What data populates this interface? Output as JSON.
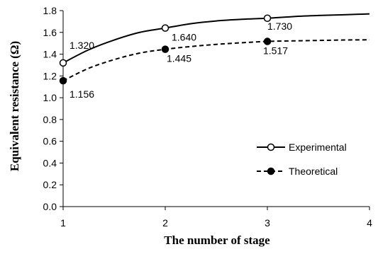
{
  "chart_data": {
    "type": "line",
    "title": "",
    "xlabel": "The number of stage",
    "ylabel": "Equivalent  resistance (Ω)",
    "x_ticks": [
      "1",
      "2",
      "3",
      "4"
    ],
    "y_ticks": [
      "0.0",
      "0.2",
      "0.4",
      "0.6",
      "0.8",
      "1.0",
      "1.2",
      "1.4",
      "1.6",
      "1.8"
    ],
    "xlim": [
      1,
      4
    ],
    "ylim": [
      0,
      1.8
    ],
    "grid": false,
    "legend_position": "right",
    "series": [
      {
        "name": "Experimental",
        "style": "solid",
        "marker": "open-circle",
        "color": "#000000",
        "curve_x": [
          1,
          1.25,
          1.5,
          1.75,
          2,
          2.25,
          2.5,
          2.75,
          3,
          3.25,
          3.5,
          3.75,
          4
        ],
        "curve_y": [
          1.32,
          1.44,
          1.53,
          1.6,
          1.64,
          1.68,
          1.705,
          1.72,
          1.73,
          1.745,
          1.755,
          1.762,
          1.77
        ],
        "points": [
          {
            "x": 1,
            "y": 1.32,
            "label": "1.320"
          },
          {
            "x": 2,
            "y": 1.64,
            "label": "1.640"
          },
          {
            "x": 3,
            "y": 1.73,
            "label": "1.730"
          }
        ]
      },
      {
        "name": "Theoretical",
        "style": "dashed",
        "marker": "filled-circle",
        "color": "#000000",
        "curve_x": [
          1,
          1.25,
          1.5,
          1.75,
          2,
          2.25,
          2.5,
          2.75,
          3,
          3.25,
          3.5,
          3.75,
          4
        ],
        "curve_y": [
          1.156,
          1.27,
          1.35,
          1.41,
          1.445,
          1.47,
          1.49,
          1.505,
          1.517,
          1.522,
          1.526,
          1.53,
          1.532
        ],
        "points": [
          {
            "x": 1,
            "y": 1.156,
            "label": "1.156"
          },
          {
            "x": 2,
            "y": 1.445,
            "label": "1.445"
          },
          {
            "x": 3,
            "y": 1.517,
            "label": "1.517"
          }
        ]
      }
    ]
  }
}
